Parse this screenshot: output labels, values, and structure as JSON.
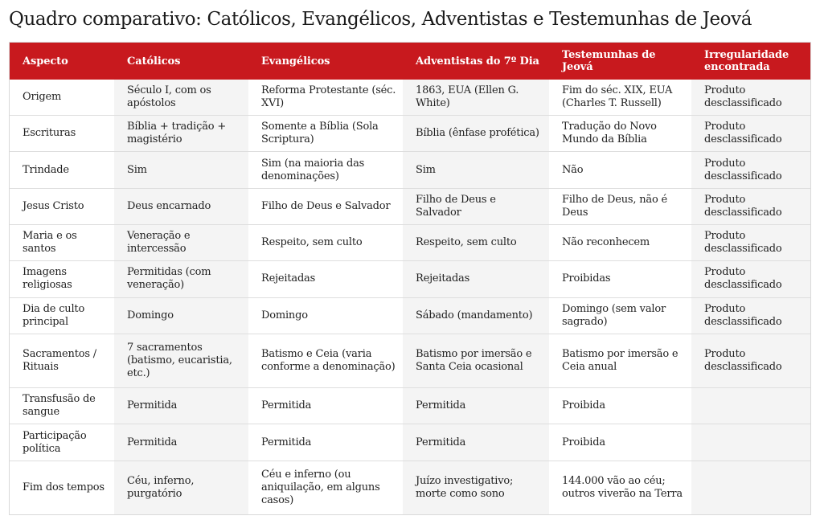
{
  "page": {
    "title": "Quadro comparativo: Católicos, Evangélicos, Adventistas e Testemunhas de Jeová"
  },
  "colors": {
    "header_bg": "#c8191e",
    "header_text": "#ffffff",
    "row_shade": "#f4f4f4",
    "border": "#dedede"
  },
  "table": {
    "headers": [
      "Aspecto",
      "Católicos",
      "Evangélicos",
      "Adventistas do 7º Dia",
      "Testemunhas de Jeová",
      "Irregularidade encontrada"
    ],
    "rows": [
      [
        "Origem",
        "Século I, com os apóstolos",
        "Reforma Protestante (séc. XVI)",
        "1863, EUA (Ellen G. White)",
        "Fim do séc. XIX, EUA (Charles T. Russell)",
        "Produto desclassificado"
      ],
      [
        "Escrituras",
        "Bíblia + tradição + magistério",
        "Somente a Bíblia (Sola Scriptura)",
        "Bíblia (ênfase profética)",
        "Tradução do Novo Mundo da Bíblia",
        "Produto desclassificado"
      ],
      [
        "Trindade",
        "Sim",
        "Sim (na maioria das denominações)",
        "Sim",
        "Não",
        "Produto desclassificado"
      ],
      [
        "Jesus Cristo",
        "Deus encarnado",
        "Filho de Deus e Salvador",
        "Filho de Deus e Salvador",
        "Filho de Deus, não é Deus",
        "Produto desclassificado"
      ],
      [
        "Maria e os santos",
        "Veneração e intercessão",
        "Respeito, sem culto",
        "Respeito, sem culto",
        "Não reconhecem",
        "Produto desclassificado"
      ],
      [
        "Imagens religiosas",
        "Permitidas (com veneração)",
        "Rejeitadas",
        "Rejeitadas",
        "Proibidas",
        "Produto desclassificado"
      ],
      [
        "Dia de culto principal",
        "Domingo",
        "Domingo",
        "Sábado (mandamento)",
        "Domingo (sem valor sagrado)",
        "Produto desclassificado"
      ],
      [
        "Sacramentos / Rituais",
        "7 sacramentos (batismo, eucaristia, etc.)",
        "Batismo e Ceia (varia conforme a denominação)",
        "Batismo por imersão e Santa Ceia ocasional",
        "Batismo por imersão e Ceia anual",
        "Produto desclassificado"
      ],
      [
        "Transfusão de sangue",
        "Permitida",
        "Permitida",
        "Permitida",
        "Proibida",
        ""
      ],
      [
        "Participação política",
        "Permitida",
        "Permitida",
        "Permitida",
        "Proibida",
        ""
      ],
      [
        "Fim dos tempos",
        "Céu, inferno, purgatório",
        "Céu e inferno (ou aniquilação, em alguns casos)",
        "Juízo investigativo; morte como sono",
        "144.000 vão ao céu; outros viverão na Terra",
        ""
      ]
    ]
  }
}
